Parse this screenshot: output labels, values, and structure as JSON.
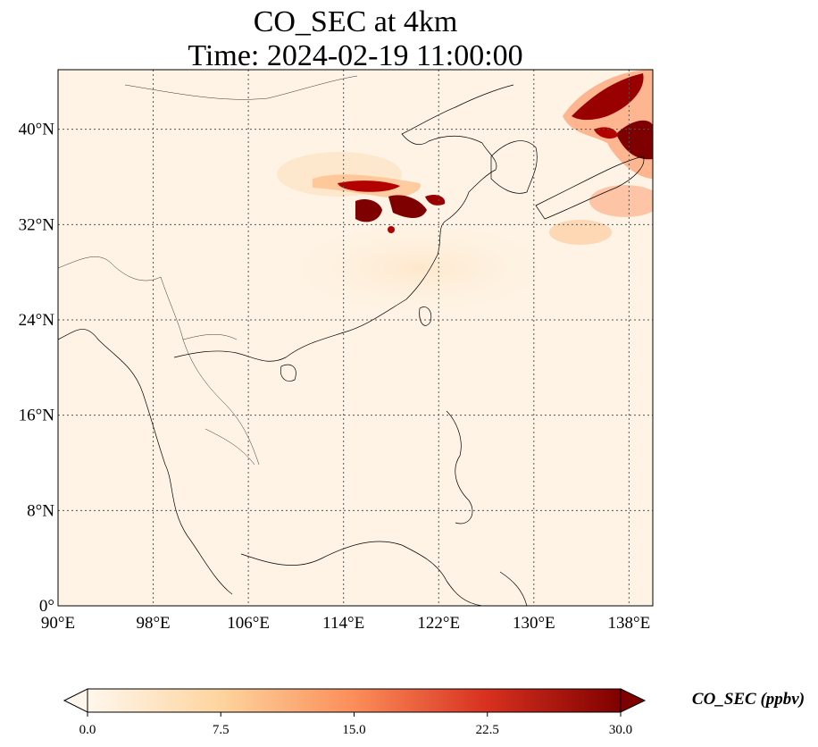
{
  "title_line1": "CO_SEC at 4km",
  "title_line2": "Time: 2024-02-19 11:00:00",
  "map": {
    "lon_range": [
      90,
      140
    ],
    "lat_range": [
      0,
      45
    ],
    "lon_ticks": [
      "90°E",
      "98°E",
      "106°E",
      "114°E",
      "122°E",
      "130°E",
      "138°E"
    ],
    "lat_ticks": [
      "0°",
      "8°N",
      "16°N",
      "24°N",
      "32°N",
      "40°N"
    ],
    "gridlines": true,
    "colormap": "OrRd",
    "plumes": [
      {
        "region": "northeast corner",
        "level": "high"
      },
      {
        "region": "east China plain",
        "level": "high"
      },
      {
        "region": "Japan",
        "level": "moderate"
      }
    ]
  },
  "colorbar": {
    "label": "CO_SEC (ppbv)",
    "ticks": [
      "0.0",
      "7.5",
      "15.0",
      "22.5",
      "30.0"
    ],
    "range": [
      0,
      30
    ],
    "extend": "both",
    "colors": [
      "#fff7ec",
      "#fdd49e",
      "#fc8d59",
      "#d7301f",
      "#7f0000"
    ]
  }
}
